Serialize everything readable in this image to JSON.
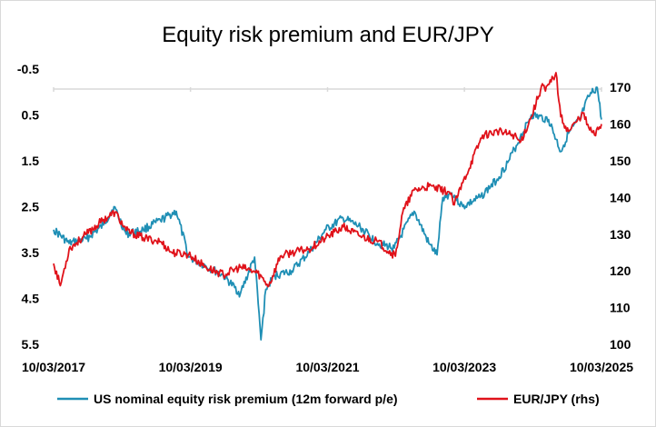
{
  "chart_data": {
    "type": "line",
    "title": "Equity risk premium and EUR/JPY",
    "xlabel": "",
    "ylabel": "",
    "grid": false,
    "legend_position": "bottom",
    "x_ticks": [
      "10/03/2017",
      "10/03/2019",
      "10/03/2021",
      "10/03/2023",
      "10/03/2025"
    ],
    "x_range": [
      "2017-03-10",
      "2025-03-10"
    ],
    "y_left": {
      "range": [
        -0.5,
        5.5
      ],
      "reversed": true,
      "ticks": [
        "-0.5",
        "0.5",
        "1.5",
        "2.5",
        "3.5",
        "4.5",
        "5.5"
      ]
    },
    "y_right": {
      "range": [
        100,
        175
      ],
      "ticks": [
        "100",
        "110",
        "120",
        "130",
        "140",
        "150",
        "160",
        "170"
      ]
    },
    "series": [
      {
        "name": "US nominal equity risk premium (12m forward p/e)",
        "color": "#1f8fb5",
        "axis": "left",
        "x": [
          "2017-03-10",
          "2017-06-01",
          "2017-09-01",
          "2017-12-01",
          "2018-01-26",
          "2018-04-01",
          "2018-07-01",
          "2018-10-01",
          "2018-12-24",
          "2019-03-01",
          "2019-06-01",
          "2019-09-01",
          "2019-12-01",
          "2020-02-15",
          "2020-03-20",
          "2020-04-15",
          "2020-06-01",
          "2020-09-01",
          "2020-12-01",
          "2021-03-01",
          "2021-06-01",
          "2021-09-01",
          "2021-12-01",
          "2022-03-01",
          "2022-06-15",
          "2022-09-01",
          "2022-10-15",
          "2022-11-15",
          "2023-01-01",
          "2023-03-01",
          "2023-06-01",
          "2023-09-01",
          "2023-11-01",
          "2024-01-01",
          "2024-03-01",
          "2024-06-01",
          "2024-08-05",
          "2024-09-15",
          "2024-11-15",
          "2025-01-01",
          "2025-02-15",
          "2025-03-10"
        ],
        "y": [
          3.0,
          3.3,
          3.2,
          2.9,
          2.5,
          3.1,
          3.0,
          2.8,
          2.6,
          3.6,
          3.8,
          4.0,
          4.4,
          3.6,
          5.4,
          4.3,
          4.0,
          3.9,
          3.5,
          3.0,
          2.75,
          2.95,
          3.3,
          3.4,
          2.6,
          3.3,
          3.55,
          2.3,
          2.2,
          2.5,
          2.3,
          1.9,
          1.5,
          1.0,
          0.5,
          0.6,
          1.3,
          0.9,
          0.6,
          0.1,
          -0.1,
          0.6
        ]
      },
      {
        "name": "EUR/JPY (rhs)",
        "color": "#e0121a",
        "axis": "right",
        "x": [
          "2017-03-10",
          "2017-04-15",
          "2017-06-01",
          "2017-09-01",
          "2017-12-01",
          "2018-02-01",
          "2018-04-01",
          "2018-07-01",
          "2018-10-01",
          "2018-12-01",
          "2019-03-01",
          "2019-06-01",
          "2019-09-01",
          "2019-12-01",
          "2020-03-01",
          "2020-05-01",
          "2020-07-01",
          "2020-09-01",
          "2020-12-01",
          "2021-03-01",
          "2021-06-01",
          "2021-09-01",
          "2021-12-01",
          "2022-03-07",
          "2022-04-15",
          "2022-06-15",
          "2022-09-01",
          "2022-12-20",
          "2023-01-15",
          "2023-03-01",
          "2023-06-15",
          "2023-09-01",
          "2023-12-01",
          "2024-01-01",
          "2024-03-01",
          "2024-04-29",
          "2024-05-15",
          "2024-07-10",
          "2024-08-05",
          "2024-09-15",
          "2024-11-01",
          "2024-12-01",
          "2025-01-01",
          "2025-02-01",
          "2025-03-10"
        ],
        "y": [
          122,
          116,
          126,
          130,
          134,
          136,
          131,
          129,
          128,
          125,
          124.5,
          121,
          119,
          121,
          119.5,
          116,
          124,
          125,
          126,
          129,
          132,
          129.5,
          128,
          124,
          136,
          142,
          143,
          141.5,
          138,
          144,
          157,
          158,
          157,
          155,
          162,
          171,
          169,
          174,
          162,
          158,
          161,
          163,
          159,
          157,
          160
        ]
      }
    ]
  }
}
